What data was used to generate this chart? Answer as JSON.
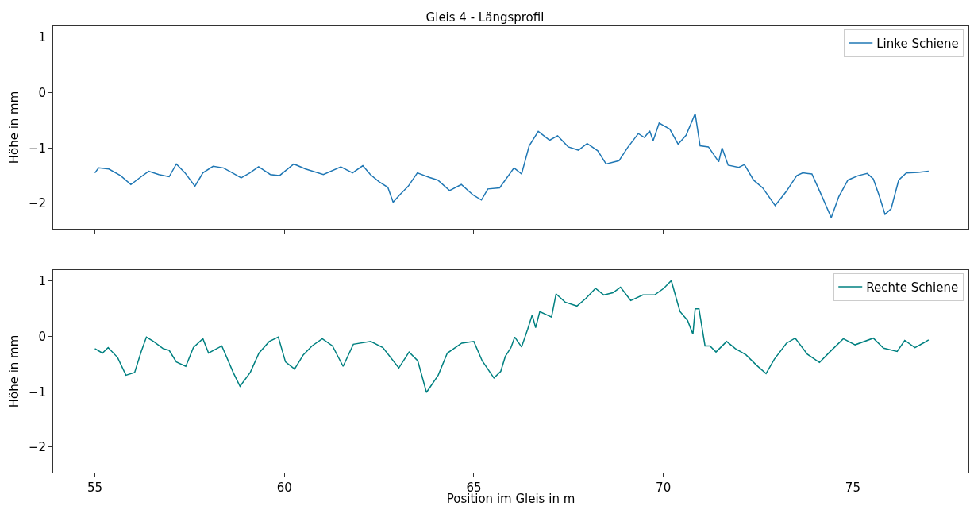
{
  "chart_data": [
    {
      "type": "line",
      "title": "Gleis 4 - Längsprofil",
      "ylabel": "Höhe in mm",
      "xlim": [
        53.9,
        78.05
      ],
      "xticks": [
        55,
        60,
        65,
        70,
        75
      ],
      "ylim": [
        -2.46,
        1.2
      ],
      "yticks": [
        -2,
        -1,
        0,
        1
      ],
      "tick_labels": "y",
      "grid": false,
      "legend": "top right",
      "marker": "none",
      "line_style": "solid",
      "series": [
        {
          "name": "Linke Schiene",
          "color": "#1f77b4",
          "x": [
            55.0,
            55.1,
            55.37,
            55.68,
            55.95,
            56.22,
            56.42,
            56.69,
            56.96,
            57.15,
            57.38,
            57.64,
            57.85,
            58.12,
            58.39,
            58.63,
            58.86,
            59.09,
            59.32,
            59.63,
            59.87,
            60.25,
            60.56,
            61.03,
            61.49,
            61.8,
            62.07,
            62.27,
            62.5,
            62.73,
            62.87,
            63.04,
            63.27,
            63.51,
            63.82,
            64.05,
            64.36,
            64.67,
            64.98,
            65.2,
            65.37,
            65.68,
            66.06,
            66.26,
            66.46,
            66.7,
            67.0,
            67.21,
            67.49,
            67.76,
            67.99,
            68.27,
            68.49,
            68.83,
            69.06,
            69.34,
            69.5,
            69.64,
            69.73,
            69.89,
            70.17,
            70.39,
            70.6,
            70.84,
            70.97,
            71.19,
            71.46,
            71.55,
            71.71,
            71.99,
            72.14,
            72.38,
            72.62,
            72.95,
            73.24,
            73.52,
            73.68,
            73.92,
            74.19,
            74.43,
            74.63,
            74.87,
            75.14,
            75.38,
            75.54,
            75.69,
            75.85,
            76.01,
            76.21,
            76.41,
            76.72,
            77.0
          ],
          "values": [
            -1.45,
            -1.36,
            -1.38,
            -1.5,
            -1.66,
            -1.52,
            -1.42,
            -1.48,
            -1.52,
            -1.29,
            -1.45,
            -1.69,
            -1.45,
            -1.33,
            -1.36,
            -1.45,
            -1.54,
            -1.45,
            -1.34,
            -1.48,
            -1.5,
            -1.29,
            -1.38,
            -1.48,
            -1.34,
            -1.45,
            -1.32,
            -1.48,
            -1.61,
            -1.71,
            -1.98,
            -1.85,
            -1.69,
            -1.45,
            -1.53,
            -1.58,
            -1.77,
            -1.66,
            -1.85,
            -1.94,
            -1.74,
            -1.72,
            -1.36,
            -1.47,
            -0.96,
            -0.7,
            -0.86,
            -0.78,
            -0.98,
            -1.04,
            -0.92,
            -1.05,
            -1.29,
            -1.23,
            -0.99,
            -0.74,
            -0.81,
            -0.69,
            -0.87,
            -0.55,
            -0.66,
            -0.93,
            -0.77,
            -0.38,
            -0.96,
            -0.98,
            -1.25,
            -1.0,
            -1.31,
            -1.35,
            -1.3,
            -1.58,
            -1.72,
            -2.04,
            -1.79,
            -1.5,
            -1.45,
            -1.47,
            -1.88,
            -2.26,
            -1.88,
            -1.58,
            -1.5,
            -1.46,
            -1.56,
            -1.85,
            -2.2,
            -2.1,
            -1.58,
            -1.45,
            -1.44,
            -1.42
          ]
        }
      ]
    },
    {
      "type": "line",
      "xlabel": "Position im Gleis in m",
      "ylabel": "Höhe in mm",
      "xlim": [
        53.9,
        78.05
      ],
      "xticks": [
        55,
        60,
        65,
        70,
        75
      ],
      "ylim": [
        -2.46,
        1.2
      ],
      "yticks": [
        -2,
        -1,
        0,
        1
      ],
      "grid": false,
      "legend": "top right",
      "marker": "none",
      "line_style": "solid",
      "series": [
        {
          "name": "Rechte Schiene",
          "color": "#008080",
          "x": [
            55.0,
            55.2,
            55.35,
            55.6,
            55.82,
            56.05,
            56.22,
            56.36,
            56.55,
            56.8,
            56.96,
            57.15,
            57.4,
            57.6,
            57.85,
            58.0,
            58.35,
            58.65,
            58.83,
            59.1,
            59.33,
            59.6,
            59.84,
            60.03,
            60.27,
            60.5,
            60.73,
            61.0,
            61.27,
            61.55,
            61.82,
            62.28,
            62.6,
            63.02,
            63.29,
            63.52,
            63.75,
            64.06,
            64.3,
            64.68,
            65.0,
            65.22,
            65.53,
            65.71,
            65.83,
            65.98,
            66.08,
            66.26,
            66.42,
            66.54,
            66.63,
            66.74,
            67.05,
            67.17,
            67.41,
            67.72,
            67.96,
            68.21,
            68.43,
            68.67,
            68.87,
            69.14,
            69.46,
            69.77,
            70.01,
            70.21,
            70.32,
            70.44,
            70.64,
            70.78,
            70.84,
            70.94,
            71.1,
            71.23,
            71.39,
            71.67,
            71.9,
            72.18,
            72.46,
            72.71,
            72.93,
            73.25,
            73.48,
            73.8,
            74.12,
            74.39,
            74.75,
            75.06,
            75.54,
            75.81,
            76.17,
            76.37,
            76.64,
            76.88,
            77.0
          ],
          "values": [
            -0.22,
            -0.3,
            -0.2,
            -0.38,
            -0.7,
            -0.65,
            -0.28,
            -0.01,
            -0.09,
            -0.22,
            -0.25,
            -0.46,
            -0.54,
            -0.2,
            -0.04,
            -0.3,
            -0.17,
            -0.65,
            -0.9,
            -0.65,
            -0.3,
            -0.09,
            -0.01,
            -0.46,
            -0.59,
            -0.33,
            -0.17,
            -0.04,
            -0.17,
            -0.54,
            -0.14,
            -0.09,
            -0.2,
            -0.57,
            -0.28,
            -0.44,
            -1.01,
            -0.7,
            -0.3,
            -0.12,
            -0.09,
            -0.44,
            -0.75,
            -0.63,
            -0.36,
            -0.2,
            -0.01,
            -0.19,
            0.13,
            0.39,
            0.16,
            0.45,
            0.35,
            0.77,
            0.62,
            0.55,
            0.69,
            0.87,
            0.75,
            0.79,
            0.89,
            0.65,
            0.75,
            0.75,
            0.87,
            1.01,
            0.74,
            0.45,
            0.29,
            0.04,
            0.5,
            0.5,
            -0.17,
            -0.17,
            -0.28,
            -0.09,
            -0.22,
            -0.33,
            -0.52,
            -0.67,
            -0.41,
            -0.12,
            -0.03,
            -0.32,
            -0.47,
            -0.28,
            -0.04,
            -0.15,
            -0.03,
            -0.21,
            -0.27,
            -0.07,
            -0.2,
            -0.11,
            -0.06
          ]
        }
      ]
    }
  ]
}
